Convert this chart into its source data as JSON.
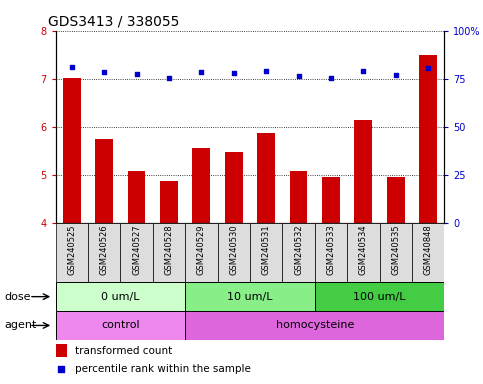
{
  "title": "GDS3413 / 338055",
  "samples": [
    "GSM240525",
    "GSM240526",
    "GSM240527",
    "GSM240528",
    "GSM240529",
    "GSM240530",
    "GSM240531",
    "GSM240532",
    "GSM240533",
    "GSM240534",
    "GSM240535",
    "GSM240848"
  ],
  "bar_values": [
    7.02,
    5.75,
    5.07,
    4.87,
    5.56,
    5.48,
    5.87,
    5.08,
    4.95,
    6.15,
    4.95,
    7.5
  ],
  "scatter_values_left_scale": [
    7.25,
    7.14,
    7.09,
    7.01,
    7.13,
    7.12,
    7.17,
    7.05,
    7.01,
    7.17,
    7.08,
    7.22
  ],
  "bar_color": "#cc0000",
  "scatter_color": "#0000cc",
  "ylim_left": [
    4,
    8
  ],
  "ylim_right": [
    0,
    100
  ],
  "yticks_left": [
    4,
    5,
    6,
    7,
    8
  ],
  "yticks_right": [
    0,
    25,
    50,
    75,
    100
  ],
  "yticklabels_right": [
    "0",
    "25",
    "50",
    "75",
    "100%"
  ],
  "dose_groups": [
    {
      "label": "0 um/L",
      "start": 0,
      "end": 4,
      "color": "#ccffcc"
    },
    {
      "label": "10 um/L",
      "start": 4,
      "end": 8,
      "color": "#88ee88"
    },
    {
      "label": "100 um/L",
      "start": 8,
      "end": 12,
      "color": "#44cc44"
    }
  ],
  "agent_groups": [
    {
      "label": "control",
      "start": 0,
      "end": 4,
      "color": "#ee88ee"
    },
    {
      "label": "homocysteine",
      "start": 4,
      "end": 12,
      "color": "#dd66dd"
    }
  ],
  "dose_label": "dose",
  "agent_label": "agent",
  "legend_bar_label": "transformed count",
  "legend_scatter_label": "percentile rank within the sample",
  "title_fontsize": 10,
  "tick_fontsize": 7,
  "xtick_fontsize": 6,
  "annotation_fontsize": 8,
  "legend_fontsize": 7.5,
  "xtick_cell_color": "#dddddd"
}
